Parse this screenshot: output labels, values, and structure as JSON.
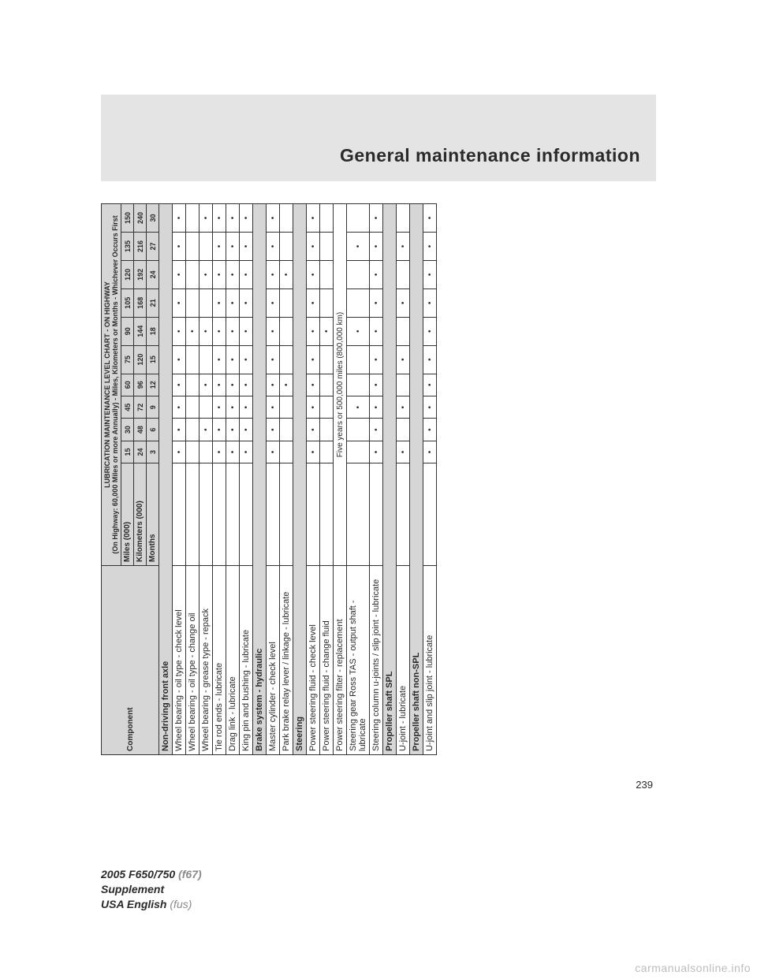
{
  "header": {
    "title": "General maintenance information"
  },
  "page_number": "239",
  "footer": {
    "line1_a": "2005 F650/750",
    "line1_b": "(f67)",
    "line2": "Supplement",
    "line3_a": "USA English",
    "line3_b": "(fus)"
  },
  "watermark": "carmanualsonline.info",
  "table": {
    "title": "LUBRICATION MAINTENANCE LEVEL CHART - ON HIGHWAY",
    "subtitle": "(On Highway: 60,000 Miles or more Annually) - Miles, Kilometers or Months - Whichever Occurs First",
    "component_label": "Component",
    "row_labels": [
      "Miles (000)",
      "Kilometers (000)",
      "Months"
    ],
    "intervals": {
      "miles": [
        "15",
        "30",
        "45",
        "60",
        "75",
        "90",
        "105",
        "120",
        "135",
        "150"
      ],
      "km": [
        "24",
        "48",
        "72",
        "96",
        "120",
        "144",
        "168",
        "192",
        "216",
        "240"
      ],
      "months": [
        "3",
        "6",
        "9",
        "12",
        "15",
        "18",
        "21",
        "24",
        "27",
        "30"
      ]
    },
    "section_axle": "Non-driving front axle",
    "five_year_note": "Five years or 500,000 miles (800,000 km)",
    "rows": [
      {
        "label": "Wheel bearing - oil type - check level",
        "marks": [
          1,
          1,
          1,
          1,
          1,
          1,
          1,
          1,
          1,
          1
        ]
      },
      {
        "label": "Wheel bearing - oil type - change oil",
        "marks": [
          0,
          0,
          0,
          0,
          0,
          1,
          0,
          0,
          0,
          0
        ]
      },
      {
        "label": "Wheel bearing - grease type - repack",
        "marks": [
          0,
          1,
          0,
          1,
          0,
          1,
          0,
          1,
          0,
          1
        ]
      },
      {
        "label": "Tie rod ends - lubricate",
        "marks": [
          1,
          1,
          1,
          1,
          1,
          1,
          1,
          1,
          1,
          1
        ]
      },
      {
        "label": "Drag link - lubricate",
        "marks": [
          1,
          1,
          1,
          1,
          1,
          1,
          1,
          1,
          1,
          1
        ]
      },
      {
        "label": "King pin and bushing - lubricate",
        "marks": [
          1,
          1,
          1,
          1,
          1,
          1,
          1,
          1,
          1,
          1
        ]
      },
      {
        "label": "Brake system - hydraulic",
        "section": true
      },
      {
        "label": "Master cylinder - check level",
        "marks": [
          1,
          1,
          1,
          1,
          1,
          1,
          1,
          1,
          1,
          1
        ]
      },
      {
        "label": "Park brake relay lever / linkage - lubricate",
        "marks": [
          0,
          0,
          0,
          1,
          0,
          0,
          0,
          1,
          0,
          0
        ]
      },
      {
        "label": "Steering",
        "section": true
      },
      {
        "label": "Power steering fluid - check level",
        "marks": [
          1,
          1,
          1,
          1,
          1,
          1,
          1,
          1,
          1,
          1
        ]
      },
      {
        "label": "Power steering fluid - change fluid",
        "marks": [
          0,
          0,
          0,
          0,
          0,
          1,
          0,
          0,
          0,
          0
        ]
      },
      {
        "label": "Power steering filter - replacement",
        "span_note": true
      },
      {
        "label": "Steering gear Ross TAS - output shaft - lubricate",
        "marks": [
          0,
          0,
          1,
          0,
          0,
          1,
          0,
          0,
          1,
          0
        ]
      },
      {
        "label": "Steering column u-joints / slip joint - lubricate",
        "marks": [
          1,
          1,
          1,
          1,
          1,
          1,
          1,
          1,
          1,
          1
        ]
      },
      {
        "label": "Propeller shaft SPL",
        "section": true
      },
      {
        "label": "U-joint - lubricate",
        "marks": [
          1,
          0,
          1,
          0,
          1,
          0,
          1,
          0,
          1,
          0
        ]
      },
      {
        "label": "Propeller shaft non-SPL",
        "section": true
      },
      {
        "label": "U-joint and slip joint - lubricate",
        "marks": [
          1,
          1,
          1,
          1,
          1,
          1,
          1,
          1,
          1,
          1
        ]
      }
    ]
  },
  "colors": {
    "header_band": "#e4e4e4",
    "cell_shade": "#d6d6d6",
    "border": "#333333",
    "text": "#2a2a2a",
    "watermark": "#bdbdbd"
  }
}
